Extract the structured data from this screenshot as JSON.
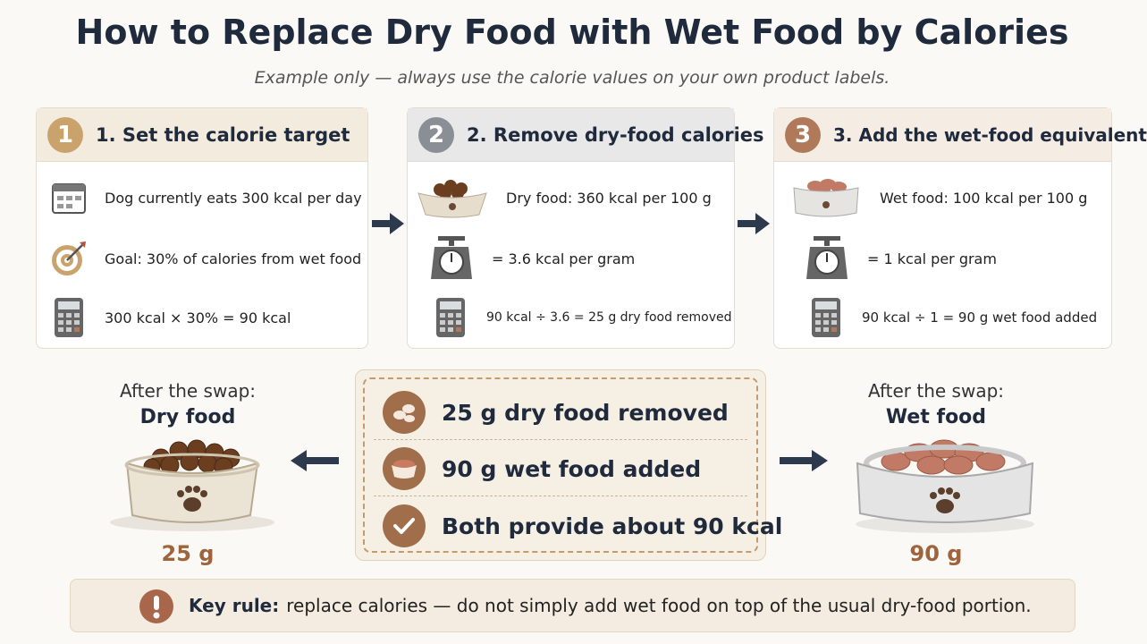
{
  "header": {
    "title": "How to Replace Dry Food with Wet Food by Calories",
    "subtitle": "Example only — always use the calorie values on your own product labels."
  },
  "steps": [
    {
      "number": "1",
      "title": "1. Set the calorie target",
      "lines": [
        "Dog currently eats 300 kcal per day",
        "Goal: 30% of calories from wet food",
        "300 kcal × 30% = 90 kcal"
      ]
    },
    {
      "number": "2",
      "title": "2. Remove dry-food calories",
      "lines": [
        "Dry food: 360 kcal per 100 g",
        "= 3.6 kcal per gram",
        "90 kcal ÷ 3.6 = 25 g dry food removed"
      ]
    },
    {
      "number": "3",
      "title": "3. Add the wet-food equivalent",
      "lines": [
        "Wet food: 100 kcal per 100 g",
        "= 1 kcal per gram",
        "90 kcal ÷ 1 = 90 g wet food added"
      ]
    }
  ],
  "left": {
    "caption": "After the swap:",
    "label": "Dry food",
    "amount": "25 g"
  },
  "right": {
    "caption": "After the swap:",
    "label": "Wet food",
    "amount": "90 g"
  },
  "summary": [
    "25 g dry food removed",
    "90 g wet food added",
    "Both provide about 90 kcal"
  ],
  "key_rule": {
    "label": "Key rule:",
    "text": "replace calories — do not simply add wet food on top of the usual dry-food portion."
  }
}
